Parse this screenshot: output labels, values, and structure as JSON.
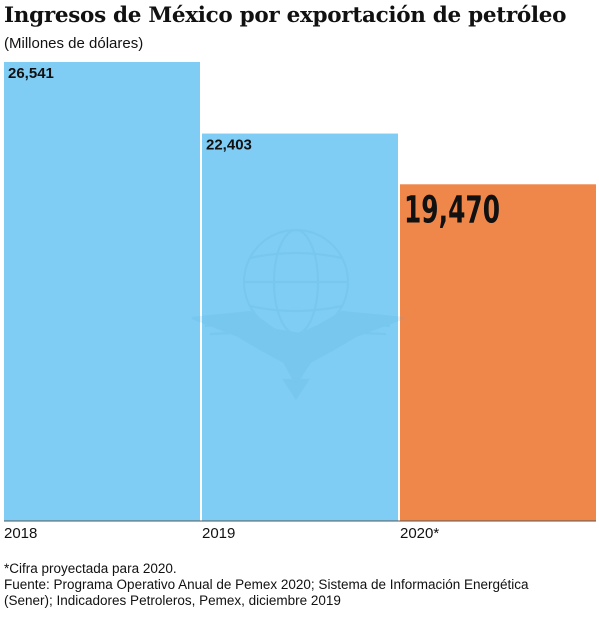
{
  "chart_data": {
    "type": "bar",
    "title": "Ingresos de México por exportación de petróleo",
    "subtitle": "(Millones de dólares)",
    "categories": [
      "2018",
      "2019",
      "2020*"
    ],
    "values": [
      26541,
      22403,
      19470
    ],
    "value_labels": [
      "26,541",
      "22,403",
      "19,470"
    ],
    "xlabel": "",
    "ylabel": "",
    "ylim": [
      0,
      26541
    ],
    "grid": false,
    "legend": "none",
    "colors": [
      "#7fcdf4",
      "#7fcdf4",
      "#f0874a"
    ],
    "highlight_index": 2
  },
  "notes": {
    "asterisk": "*Cifra proyectada para 2020.",
    "source_line1": "Fuente: Programa Operativo Anual de Pemex 2020; Sistema de Información Energética",
    "source_line2": "(Sener); Indicadores Petroleros, Pemex, diciembre 2019"
  },
  "colors": {
    "bar": "#7fcdf4",
    "highlight": "#f0874a",
    "axis": "#555555",
    "watermark": "#5aa9d6"
  },
  "watermark_icon": "eagle-emblem-icon"
}
